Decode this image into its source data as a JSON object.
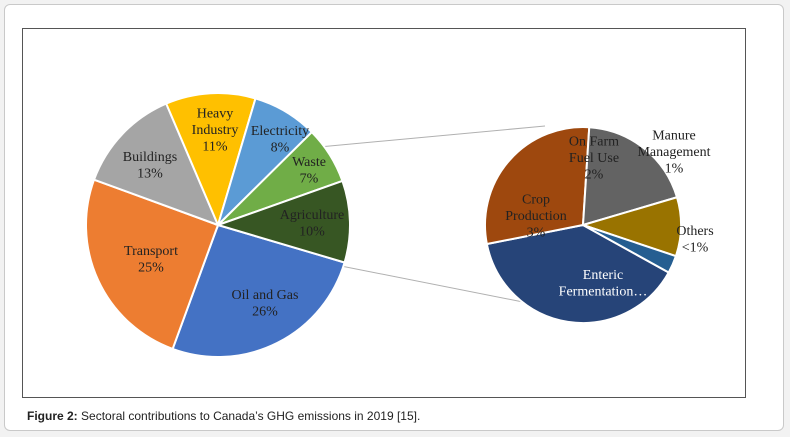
{
  "caption": {
    "label": "Figure 2:",
    "text": "Sectoral contributions to Canada’s GHG emissions in 2019 [15]."
  },
  "chart_data": [
    {
      "type": "pie",
      "slices": [
        {
          "lines": [
            "Oil and Gas"
          ],
          "pct": "26%",
          "value": 26,
          "color": "#4472c4"
        },
        {
          "lines": [
            "Transport"
          ],
          "pct": "25%",
          "value": 25,
          "color": "#ed7d31"
        },
        {
          "lines": [
            "Buildings"
          ],
          "pct": "13%",
          "value": 13,
          "color": "#a5a5a5"
        },
        {
          "lines": [
            "Heavy",
            "Industry"
          ],
          "pct": "11%",
          "value": 11,
          "color": "#ffc000"
        },
        {
          "lines": [
            "Electricity"
          ],
          "pct": "8%",
          "value": 8,
          "color": "#5b9bd5"
        },
        {
          "lines": [
            "Waste"
          ],
          "pct": "7%",
          "value": 7,
          "color": "#70ad47"
        },
        {
          "lines": [
            "Agriculture"
          ],
          "pct": "10%",
          "value": 10,
          "color": "#375623"
        }
      ]
    },
    {
      "type": "pie",
      "breakdown_of": "Agriculture",
      "slices": [
        {
          "lines": [
            "Enteric",
            "Fermentation…"
          ],
          "pct": "",
          "value": 4,
          "color": "#264478"
        },
        {
          "lines": [
            "Crop",
            "Production"
          ],
          "pct": "3%",
          "value": 3,
          "color": "#9e480e"
        },
        {
          "lines": [
            "On Farm",
            "Fuel Use"
          ],
          "pct": "2%",
          "value": 2,
          "color": "#636363"
        },
        {
          "lines": [
            "Manure",
            "Management"
          ],
          "pct": "1%",
          "value": 1,
          "color": "#997300"
        },
        {
          "lines": [
            "Others"
          ],
          "pct": "<1%",
          "value": 0.3,
          "color": "#255e91"
        }
      ]
    }
  ]
}
